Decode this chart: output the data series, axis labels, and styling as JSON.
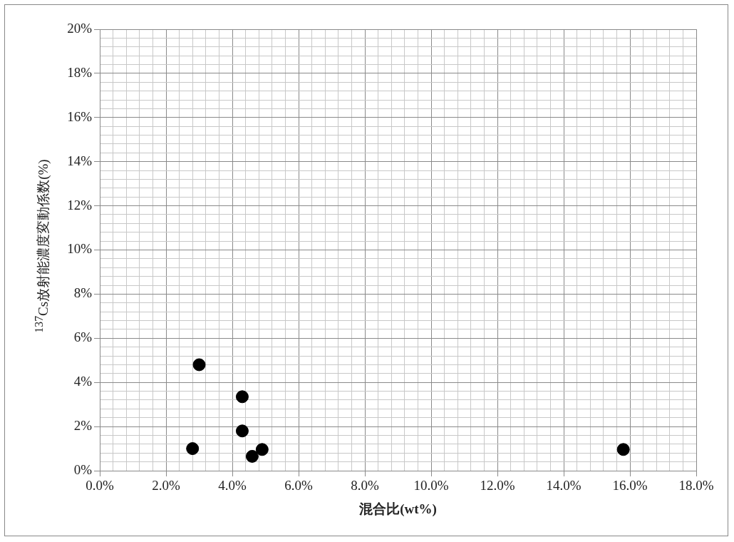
{
  "chart_data": {
    "type": "scatter",
    "xlabel": "混合比(wt%)",
    "ylabel": "$^{137}$Cs放射能濃度変動係数(%)",
    "x": [
      2.8,
      3.0,
      4.3,
      4.3,
      4.6,
      4.9,
      15.8
    ],
    "series": [
      {
        "color": "#000000",
        "values": [
          1.0,
          4.8,
          3.35,
          1.8,
          0.65,
          0.96,
          0.96
        ]
      }
    ],
    "xlim": [
      0,
      18
    ],
    "xticks": [
      {
        "value": 0,
        "label": "0.0%"
      },
      {
        "value": 0.4,
        "label": null
      },
      {
        "value": 0.8,
        "label": null
      },
      {
        "value": 1.2,
        "label": null
      },
      {
        "value": 1.6,
        "label": null
      },
      {
        "value": 2,
        "label": "2.0%"
      },
      {
        "value": 2.4,
        "label": null
      },
      {
        "value": 2.8,
        "label": null
      },
      {
        "value": 3.2,
        "label": null
      },
      {
        "value": 3.6,
        "label": null
      },
      {
        "value": 4,
        "label": "4.0%"
      },
      {
        "value": 4.4,
        "label": null
      },
      {
        "value": 4.8,
        "label": null
      },
      {
        "value": 5.2,
        "label": null
      },
      {
        "value": 5.6,
        "label": null
      },
      {
        "value": 6,
        "label": "6.0%"
      },
      {
        "value": 6.4,
        "label": null
      },
      {
        "value": 6.8,
        "label": null
      },
      {
        "value": 7.2,
        "label": null
      },
      {
        "value": 7.6,
        "label": null
      },
      {
        "value": 8,
        "label": "8.0%"
      },
      {
        "value": 8.4,
        "label": null
      },
      {
        "value": 8.8,
        "label": null
      },
      {
        "value": 9.2,
        "label": null
      },
      {
        "value": 9.6,
        "label": null
      },
      {
        "value": 10,
        "label": "10.0%"
      },
      {
        "value": 10.4,
        "label": null
      },
      {
        "value": 10.8,
        "label": null
      },
      {
        "value": 11.2,
        "label": null
      },
      {
        "value": 11.6,
        "label": null
      },
      {
        "value": 12,
        "label": "12.0%"
      },
      {
        "value": 12.4,
        "label": null
      },
      {
        "value": 12.8,
        "label": null
      },
      {
        "value": 13.2,
        "label": null
      },
      {
        "value": 13.6,
        "label": null
      },
      {
        "value": 14,
        "label": "14.0%"
      },
      {
        "value": 14.4,
        "label": null
      },
      {
        "value": 14.8,
        "label": null
      },
      {
        "value": 15.2,
        "label": null
      },
      {
        "value": 15.6,
        "label": null
      },
      {
        "value": 16,
        "label": "16.0%"
      },
      {
        "value": 16.4,
        "label": null
      },
      {
        "value": 16.8,
        "label": null
      },
      {
        "value": 17.2,
        "label": null
      },
      {
        "value": 17.6,
        "label": null
      },
      {
        "value": 18,
        "label": "18.0%"
      }
    ],
    "ylim": [
      0,
      20
    ],
    "yticks": [
      {
        "value": 0,
        "label": "0%"
      },
      {
        "value": 0.4,
        "label": null
      },
      {
        "value": 0.8,
        "label": null
      },
      {
        "value": 1.2,
        "label": null
      },
      {
        "value": 1.6,
        "label": null
      },
      {
        "value": 2,
        "label": "2%"
      },
      {
        "value": 2.4,
        "label": null
      },
      {
        "value": 2.8,
        "label": null
      },
      {
        "value": 3.2,
        "label": null
      },
      {
        "value": 3.6,
        "label": null
      },
      {
        "value": 4,
        "label": "4%"
      },
      {
        "value": 4.4,
        "label": null
      },
      {
        "value": 4.8,
        "label": null
      },
      {
        "value": 5.2,
        "label": null
      },
      {
        "value": 5.6,
        "label": null
      },
      {
        "value": 6,
        "label": "6%"
      },
      {
        "value": 6.4,
        "label": null
      },
      {
        "value": 6.8,
        "label": null
      },
      {
        "value": 7.2,
        "label": null
      },
      {
        "value": 7.6,
        "label": null
      },
      {
        "value": 8,
        "label": "8%"
      },
      {
        "value": 8.4,
        "label": null
      },
      {
        "value": 8.8,
        "label": null
      },
      {
        "value": 9.2,
        "label": null
      },
      {
        "value": 9.6,
        "label": null
      },
      {
        "value": 10,
        "label": "10%"
      },
      {
        "value": 10.4,
        "label": null
      },
      {
        "value": 10.8,
        "label": null
      },
      {
        "value": 11.2,
        "label": null
      },
      {
        "value": 11.6,
        "label": null
      },
      {
        "value": 12,
        "label": "12%"
      },
      {
        "value": 12.4,
        "label": null
      },
      {
        "value": 12.8,
        "label": null
      },
      {
        "value": 13.2,
        "label": null
      },
      {
        "value": 13.6,
        "label": null
      },
      {
        "value": 14,
        "label": "14%"
      },
      {
        "value": 14.4,
        "label": null
      },
      {
        "value": 14.8,
        "label": null
      },
      {
        "value": 15.2,
        "label": null
      },
      {
        "value": 15.6,
        "label": null
      },
      {
        "value": 16,
        "label": "16%"
      },
      {
        "value": 16.4,
        "label": null
      },
      {
        "value": 16.8,
        "label": null
      },
      {
        "value": 17.2,
        "label": null
      },
      {
        "value": 17.6,
        "label": null
      },
      {
        "value": 18,
        "label": "18%"
      },
      {
        "value": 18.4,
        "label": null
      },
      {
        "value": 18.8,
        "label": null
      },
      {
        "value": 19.2,
        "label": null
      },
      {
        "value": 19.6,
        "label": null
      },
      {
        "value": 20,
        "label": "20%"
      }
    ],
    "grid": true,
    "marker": "circle",
    "legend": false
  }
}
